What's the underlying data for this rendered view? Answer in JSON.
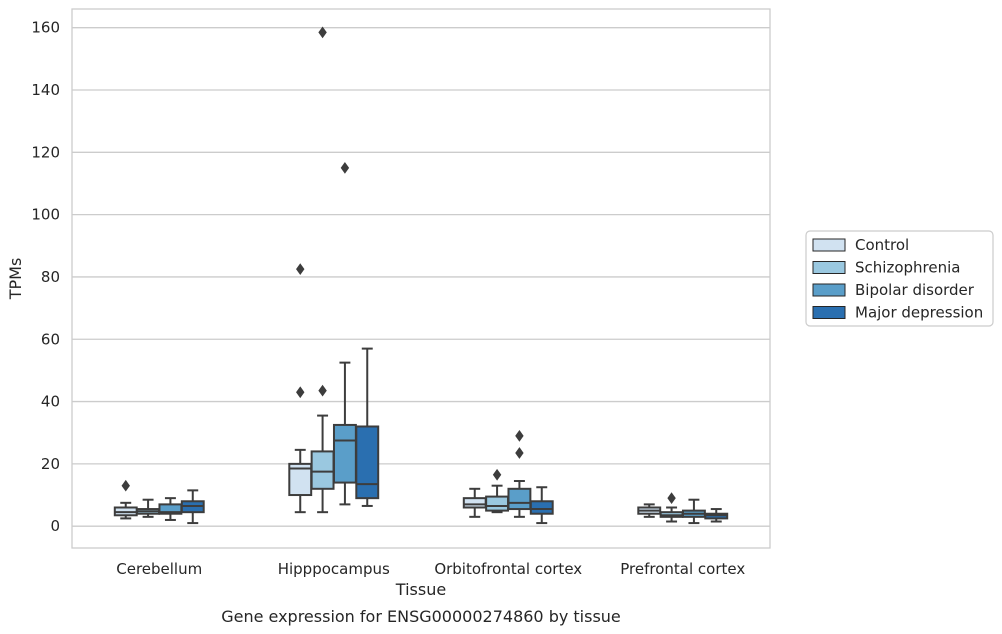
{
  "chart_data": {
    "type": "box",
    "title": "",
    "caption": "Gene expression for ENSG00000274860 by tissue",
    "xlabel": "Tissue",
    "ylabel": "TPMs",
    "ylim": [
      -7,
      166
    ],
    "yticks": [
      0,
      20,
      40,
      60,
      80,
      100,
      120,
      140,
      160
    ],
    "grid": "horizontal",
    "legend_position": "outside-right",
    "categories": [
      "Cerebellum",
      "Hipppocampus",
      "Orbitofrontal cortex",
      "Prefrontal cortex"
    ],
    "series": [
      {
        "name": "Control",
        "color": "#d1e2f1",
        "boxes": [
          {
            "whislo": 2.5,
            "q1": 3.5,
            "med": 4.5,
            "q3": 6.0,
            "whishi": 7.5,
            "fliers": [
              13
            ]
          },
          {
            "whislo": 4.5,
            "q1": 10.0,
            "med": 18.5,
            "q3": 20.0,
            "whishi": 24.5,
            "fliers": [
              43,
              82.5
            ]
          },
          {
            "whislo": 3.0,
            "q1": 6.0,
            "med": 7.0,
            "q3": 9.0,
            "whishi": 12.0,
            "fliers": []
          },
          {
            "whislo": 3.0,
            "q1": 4.0,
            "med": 5.0,
            "q3": 6.0,
            "whishi": 7.0,
            "fliers": []
          }
        ]
      },
      {
        "name": "Schizophrenia",
        "color": "#9ac8e0",
        "boxes": [
          {
            "whislo": 3.0,
            "q1": 4.0,
            "med": 4.8,
            "q3": 5.5,
            "whishi": 8.5,
            "fliers": []
          },
          {
            "whislo": 4.5,
            "q1": 12.0,
            "med": 17.5,
            "q3": 24.0,
            "whishi": 35.5,
            "fliers": [
              43.5,
              158.5
            ]
          },
          {
            "whislo": 4.5,
            "q1": 5.0,
            "med": 6.5,
            "q3": 9.5,
            "whishi": 13.0,
            "fliers": [
              16.5
            ]
          },
          {
            "whislo": 1.5,
            "q1": 3.0,
            "med": 3.5,
            "q3": 4.5,
            "whishi": 6.0,
            "fliers": [
              9
            ]
          }
        ]
      },
      {
        "name": "Bipolar disorder",
        "color": "#5a9ec9",
        "boxes": [
          {
            "whislo": 2.0,
            "q1": 4.0,
            "med": 4.5,
            "q3": 7.0,
            "whishi": 9.0,
            "fliers": []
          },
          {
            "whislo": 7.0,
            "q1": 14.0,
            "med": 27.5,
            "q3": 32.5,
            "whishi": 52.5,
            "fliers": [
              115
            ]
          },
          {
            "whislo": 3.0,
            "q1": 5.5,
            "med": 7.5,
            "q3": 12.0,
            "whishi": 14.5,
            "fliers": [
              23.5,
              29
            ]
          },
          {
            "whislo": 1.0,
            "q1": 3.0,
            "med": 4.0,
            "q3": 5.0,
            "whishi": 8.5,
            "fliers": []
          }
        ]
      },
      {
        "name": "Major depression",
        "color": "#2a6fb0",
        "boxes": [
          {
            "whislo": 1.0,
            "q1": 4.5,
            "med": 6.5,
            "q3": 8.0,
            "whishi": 11.5,
            "fliers": []
          },
          {
            "whislo": 6.5,
            "q1": 9.0,
            "med": 13.5,
            "q3": 32.0,
            "whishi": 57.0,
            "fliers": []
          },
          {
            "whislo": 1.0,
            "q1": 4.0,
            "med": 5.5,
            "q3": 8.0,
            "whishi": 12.5,
            "fliers": []
          },
          {
            "whislo": 1.5,
            "q1": 2.5,
            "med": 3.5,
            "q3": 4.0,
            "whishi": 5.5,
            "fliers": []
          }
        ]
      }
    ]
  }
}
